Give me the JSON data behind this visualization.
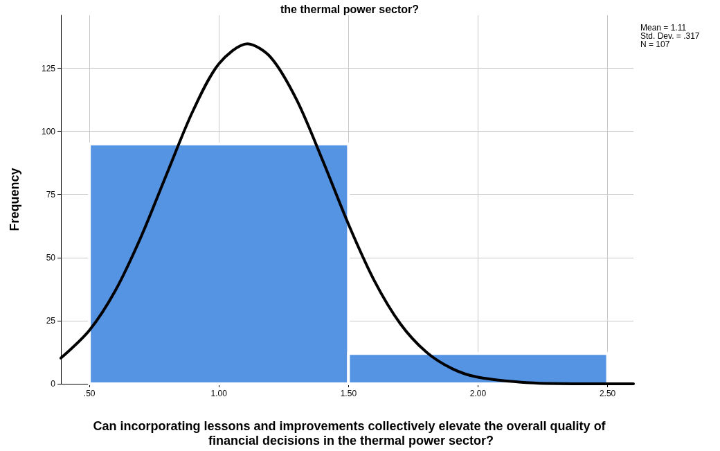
{
  "chart_data": {
    "type": "histogram",
    "title": "the thermal power sector?",
    "xlabel": "Can incorporating lessons and improvements collectively elevate the overall quality of financial decisions in the thermal power sector?",
    "ylabel": "Frequency",
    "bins": [
      0.5,
      1.5,
      2.5
    ],
    "values": [
      95,
      12
    ],
    "color": "#5593e3",
    "series": [
      {
        "type": "line",
        "color": "#000000",
        "x": [
          0.39,
          0.5,
          0.6,
          0.7,
          0.8,
          0.9,
          1.0,
          1.11,
          1.2,
          1.3,
          1.4,
          1.5,
          1.6,
          1.7,
          1.8,
          1.9,
          2.0,
          2.2,
          2.4,
          2.6
        ],
        "values": [
          10.2,
          21.2,
          36.9,
          58.4,
          83.5,
          108.2,
          126.8,
          134.7,
          129.3,
          112.5,
          88.6,
          63.2,
          40.8,
          23.8,
          12.6,
          6.0,
          2.6,
          0.4,
          0.0,
          0.0
        ]
      }
    ],
    "xlim": [
      0.39,
      2.6
    ],
    "xticks": [
      {
        "value": 0.5,
        "label": ".50"
      },
      {
        "value": 1.0,
        "label": "1.00"
      },
      {
        "value": 1.5,
        "label": "1.50"
      },
      {
        "value": 2.0,
        "label": "2.00"
      },
      {
        "value": 2.5,
        "label": "2.50"
      }
    ],
    "ylim": [
      0,
      146
    ],
    "yticks": [
      0,
      25,
      50,
      75,
      100,
      125
    ],
    "grid": true,
    "marker": "none",
    "line_style": "solid",
    "annotations": [
      "Mean = 1.11",
      "Std. Dev. = .317",
      "N = 107"
    ]
  }
}
